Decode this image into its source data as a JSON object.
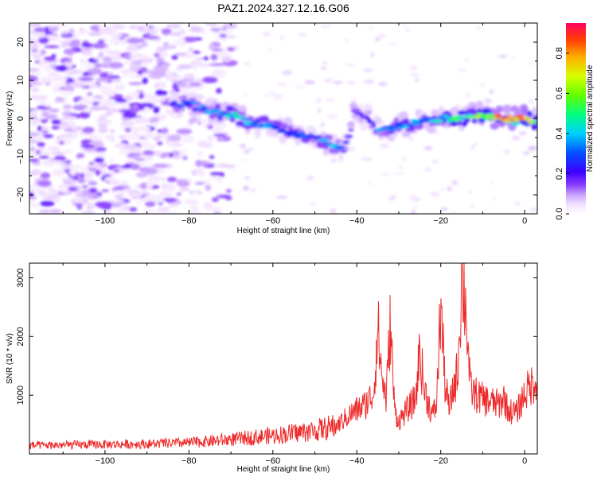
{
  "title": "PAZ1.2024.327.12.16.G06",
  "colors": {
    "snr_line": "#ee2a2a",
    "axes": "#000000"
  },
  "chart_data": [
    {
      "type": "heatmap",
      "xlabel": "Height of straight line (km)",
      "ylabel": "Frequency (Hz)",
      "xlim": [
        -118,
        3
      ],
      "ylim": [
        -25,
        25
      ],
      "x_ticks": [
        -100,
        -80,
        -60,
        -40,
        -20,
        0
      ],
      "y_ticks": [
        -20,
        -10,
        0,
        10,
        20
      ],
      "colorbar": {
        "label": "Normalized spectral amplitude",
        "range": [
          0,
          0.95
        ],
        "ticks": [
          "0.0",
          "0.2",
          "0.4",
          "0.6",
          "0.8"
        ],
        "colormap": [
          "#ffffff",
          "#f2e0ff",
          "#c9a3ff",
          "#8a40ff",
          "#3d00ff",
          "#0050ff",
          "#00d0ff",
          "#00ff80",
          "#a0ff00",
          "#ffd000",
          "#ff7000",
          "#ff0050"
        ]
      },
      "signal_track": {
        "x": [
          -84,
          -80,
          -75,
          -70,
          -65,
          -60,
          -55,
          -50,
          -46,
          -43,
          -40,
          -37,
          -35,
          -30,
          -25,
          -20,
          -15,
          -10,
          -5,
          0,
          3
        ],
        "freq": [
          4,
          4,
          2,
          1,
          -1,
          -2,
          -4,
          -5,
          -7,
          -8,
          2,
          0,
          -3,
          -2,
          -1,
          0,
          0,
          1,
          0,
          0,
          -1
        ],
        "amplitude": [
          0.4,
          0.45,
          0.5,
          0.55,
          0.5,
          0.45,
          0.45,
          0.45,
          0.5,
          0.4,
          0.3,
          0.35,
          0.45,
          0.5,
          0.5,
          0.55,
          0.6,
          0.7,
          0.9,
          0.9,
          0.6
        ]
      },
      "noise_region": {
        "x": [
          -118,
          -70
        ],
        "freq_range": [
          -25,
          25
        ],
        "amplitude_range": [
          0.05,
          0.3
        ]
      }
    },
    {
      "type": "line",
      "xlabel": "Height of straight line (km)",
      "ylabel": "SNR (10 * v/v)",
      "xlim": [
        -118,
        3
      ],
      "ylim": [
        0,
        3250
      ],
      "x_ticks": [
        -100,
        -80,
        -60,
        -40,
        -20,
        0
      ],
      "y_ticks": [
        1000,
        2000,
        3000
      ],
      "series": [
        {
          "x": [
            -118,
            -110,
            -100,
            -90,
            -80,
            -70,
            -60,
            -50,
            -45,
            -42,
            -40,
            -38,
            -36,
            -35,
            -34,
            -33,
            -32,
            -31,
            -30,
            -28,
            -26,
            -25,
            -24,
            -22,
            -21,
            -20,
            -19,
            -18,
            -17,
            -16,
            -15,
            -14,
            -13,
            -12,
            -10,
            -8,
            -6,
            -5,
            -4,
            -2,
            0,
            2,
            3
          ],
          "values": [
            150,
            160,
            170,
            180,
            200,
            260,
            330,
            420,
            500,
            700,
            800,
            900,
            1100,
            2300,
            1400,
            1000,
            2400,
            800,
            600,
            800,
            1000,
            1900,
            1200,
            700,
            900,
            2750,
            1300,
            800,
            1200,
            1500,
            3200,
            2700,
            1200,
            1100,
            1000,
            950,
            900,
            1050,
            800,
            750,
            1100,
            1300,
            1400
          ]
        }
      ]
    }
  ]
}
